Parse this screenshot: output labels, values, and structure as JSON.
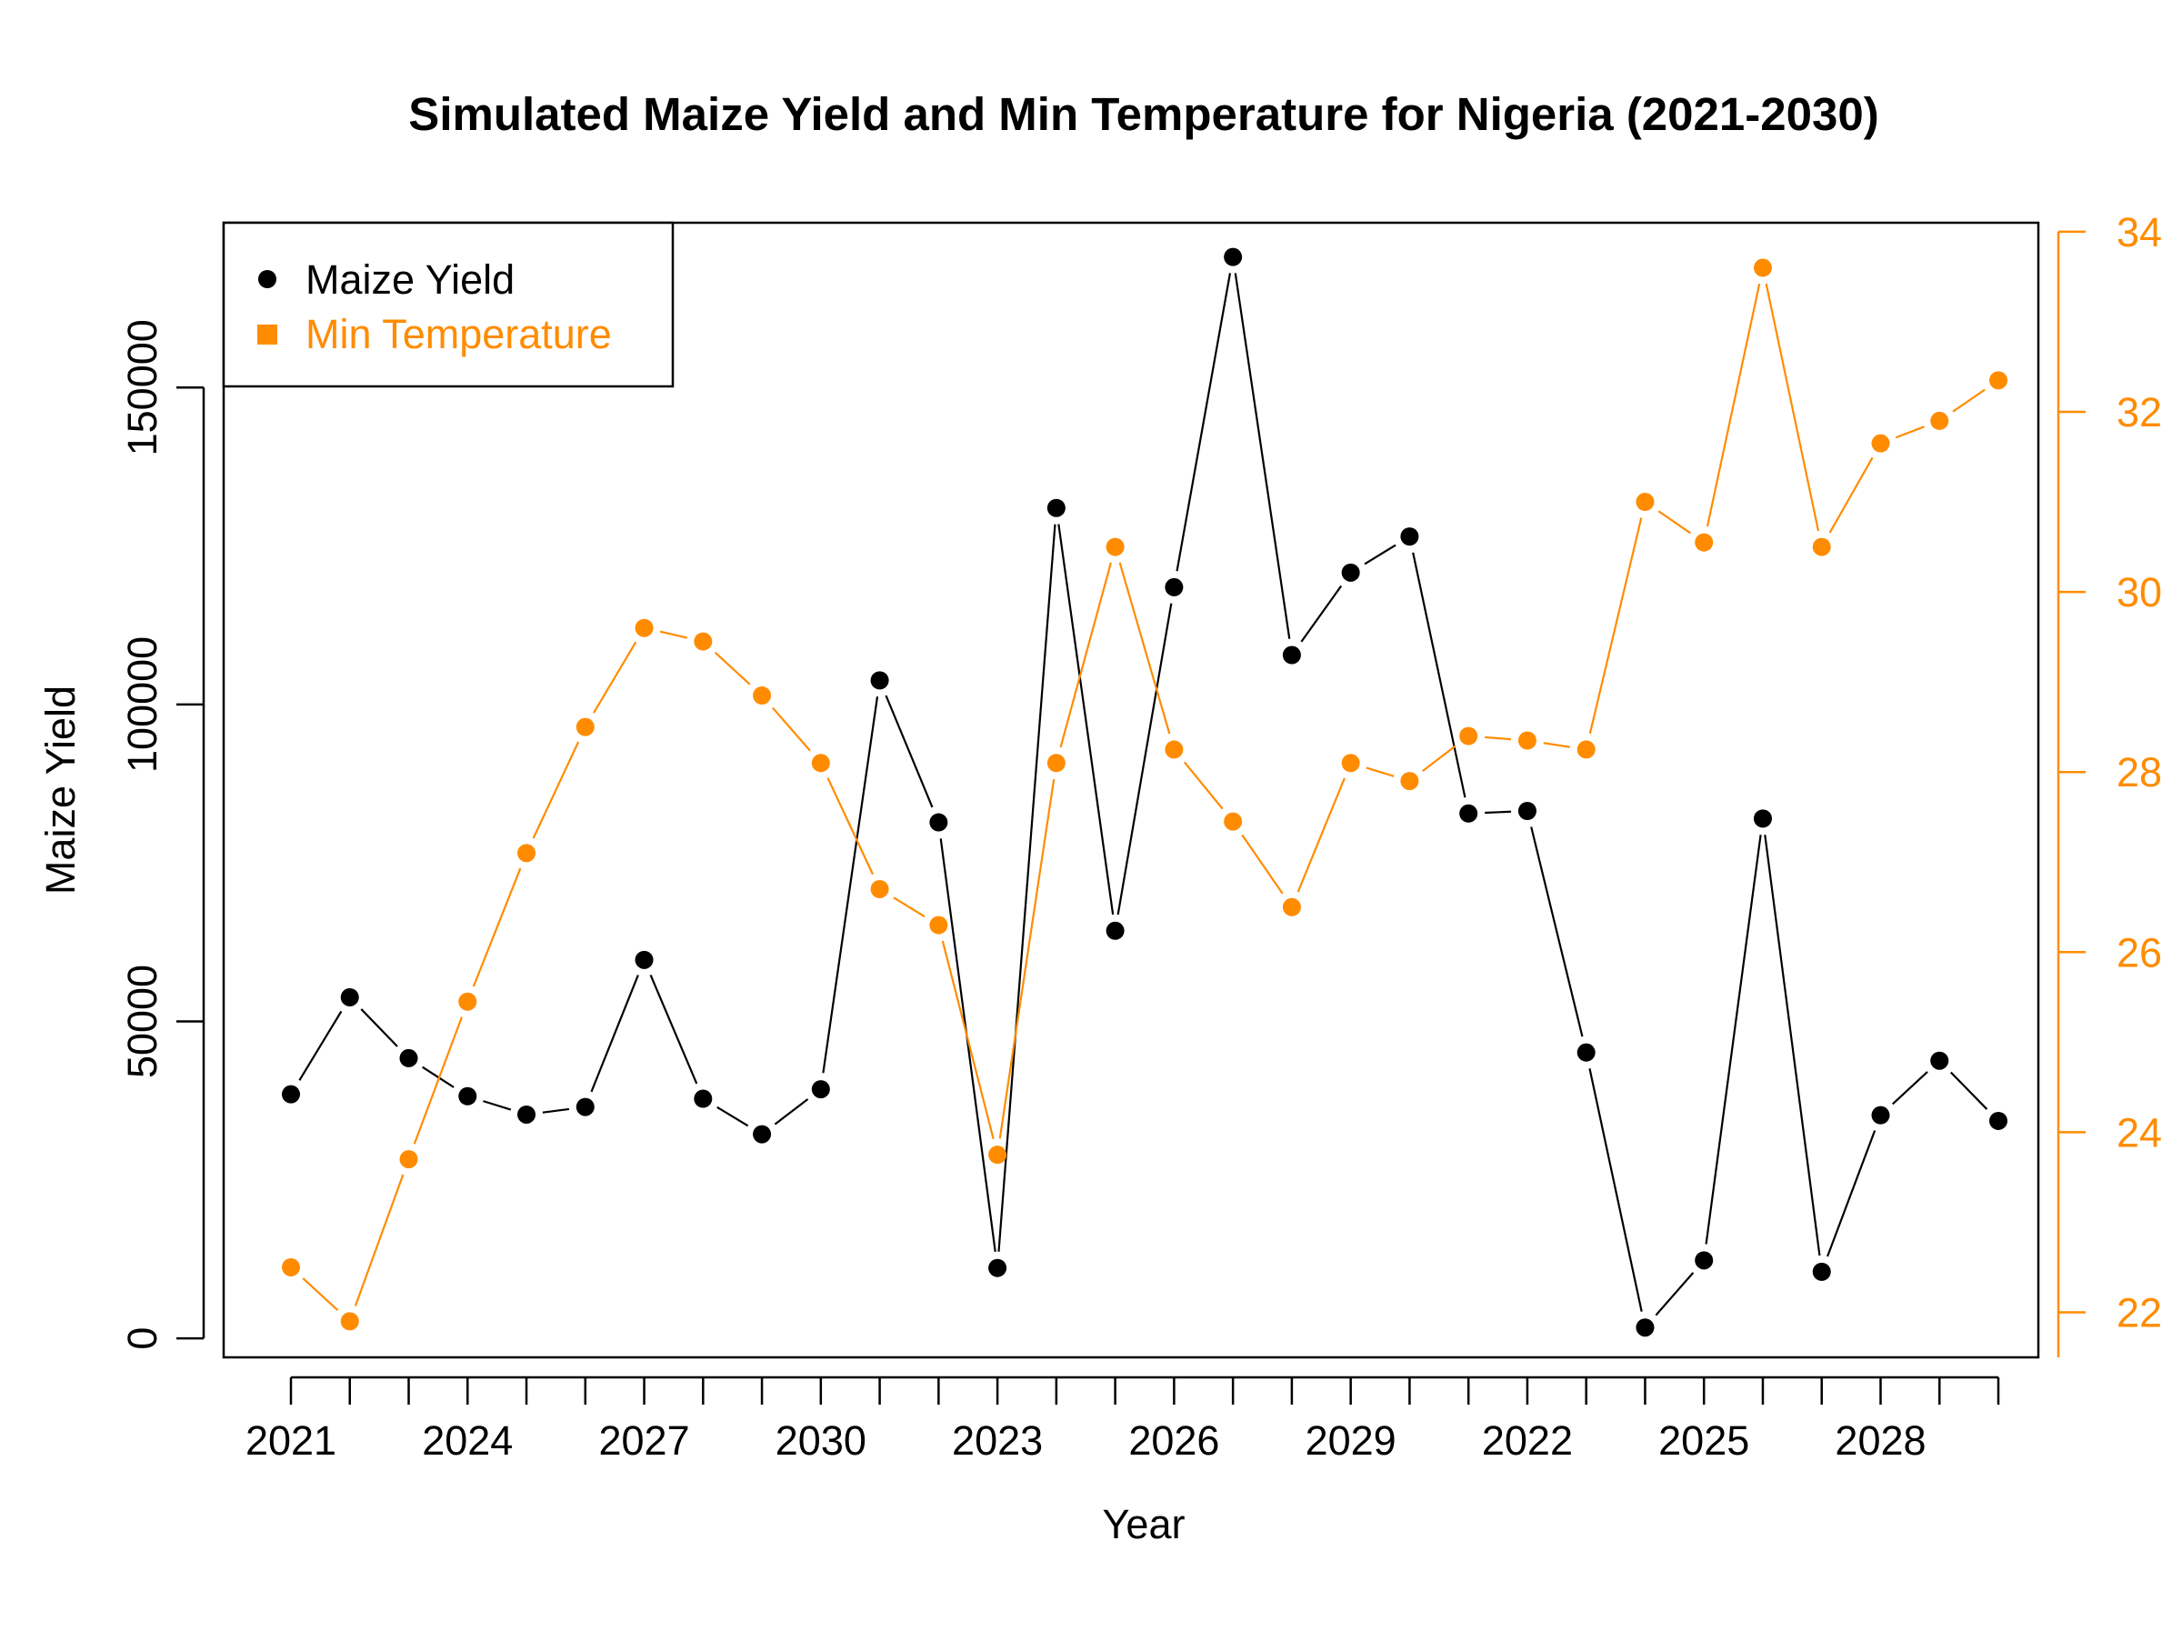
{
  "chart_data": {
    "type": "line",
    "title": "Simulated Maize Yield and Min Temperature for Nigeria (2021-2030)",
    "xlabel": "Year",
    "ylabel": "Maize Yield",
    "x": [
      2021,
      2022,
      2023,
      2024,
      2025,
      2026,
      2027,
      2028,
      2029,
      2030,
      2021,
      2022,
      2023,
      2024,
      2025,
      2026,
      2027,
      2028,
      2029,
      2030,
      2021,
      2022,
      2023,
      2024,
      2025,
      2026,
      2027,
      2028,
      2029,
      2030
    ],
    "x_tick_labels": [
      "2021",
      "2024",
      "2027",
      "2030",
      "2023",
      "2026",
      "2029",
      "2022",
      "2025",
      "2028"
    ],
    "x_tick_label_indices": [
      0,
      3,
      6,
      9,
      12,
      15,
      18,
      21,
      24,
      27
    ],
    "ylim": [
      -3000,
      176000
    ],
    "y_ticks": [
      0,
      50000,
      100000,
      150000
    ],
    "y_tick_labels": [
      "0",
      "50000",
      "100000",
      "150000"
    ],
    "y2lim": [
      21.5,
      34.1
    ],
    "y2_ticks": [
      22,
      24,
      26,
      28,
      30,
      32,
      34
    ],
    "y2_tick_labels": [
      "22",
      "24",
      "26",
      "28",
      "30",
      "32",
      "34"
    ],
    "grid": false,
    "legend_position": "top-left",
    "series": [
      {
        "name": "Maize Yield",
        "axis": "left",
        "color": "#000000",
        "marker": "circle",
        "values": [
          38500,
          53800,
          44200,
          38200,
          35300,
          36500,
          59700,
          37800,
          32200,
          39300,
          103800,
          81400,
          11100,
          131000,
          64300,
          118500,
          170600,
          107800,
          120800,
          126500,
          82800,
          83200,
          45100,
          1700,
          12300,
          82000,
          10500,
          35200,
          43800,
          34300
        ]
      },
      {
        "name": "Min Temperature",
        "axis": "right",
        "color": "#FF8C00",
        "marker": "square",
        "values": [
          22.5,
          21.9,
          23.7,
          25.45,
          27.1,
          28.5,
          29.6,
          29.45,
          28.85,
          28.1,
          26.7,
          26.3,
          23.75,
          28.1,
          30.5,
          28.25,
          27.45,
          26.5,
          28.1,
          27.9,
          28.4,
          28.35,
          28.25,
          31.0,
          30.55,
          33.6,
          30.5,
          31.65,
          31.9,
          32.35
        ]
      }
    ]
  }
}
